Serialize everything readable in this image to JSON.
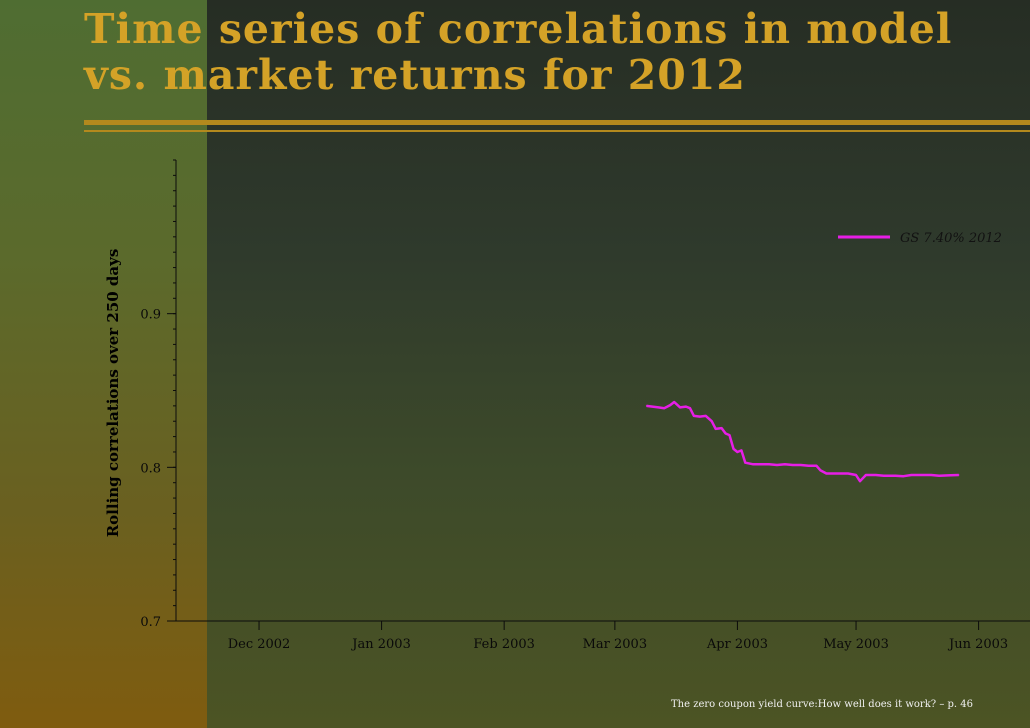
{
  "slide": {
    "title": "Time series of correlations in model vs. market returns for 2012",
    "footer": "The zero coupon yield curve:How well does it work? – p. 46"
  },
  "colors": {
    "title": "#d4a227",
    "series": "#e61ee6"
  },
  "chart_data": {
    "type": "line",
    "title": "",
    "xlabel": "",
    "ylabel": "Rolling correlations over 250 days",
    "ylim": [
      0.7,
      1.0
    ],
    "y_ticks": [
      "0.7",
      "0.8",
      "0.9"
    ],
    "x_range_days": [
      -21,
      195
    ],
    "x_ticks": [
      {
        "label": "Dec 2002",
        "day": 0
      },
      {
        "label": "Jan 2003",
        "day": 31
      },
      {
        "label": "Feb 2003",
        "day": 62
      },
      {
        "label": "Mar 2003",
        "day": 90
      },
      {
        "label": "Apr 2003",
        "day": 121
      },
      {
        "label": "May 2003",
        "day": 151
      },
      {
        "label": "Jun 2003",
        "day": 182
      }
    ],
    "legend": {
      "location": "top-right"
    },
    "series": [
      {
        "name": "GS 7.40% 2012",
        "points": [
          [
            98.0,
            0.84
          ],
          [
            99.5,
            0.8395
          ],
          [
            101.0,
            0.839
          ],
          [
            102.5,
            0.8385
          ],
          [
            104.0,
            0.8405
          ],
          [
            105.0,
            0.8425
          ],
          [
            106.5,
            0.839
          ],
          [
            108.0,
            0.8395
          ],
          [
            109.0,
            0.8385
          ],
          [
            110.0,
            0.8335
          ],
          [
            111.5,
            0.833
          ],
          [
            113.0,
            0.8335
          ],
          [
            114.5,
            0.83
          ],
          [
            115.5,
            0.825
          ],
          [
            117.0,
            0.8255
          ],
          [
            118.0,
            0.822
          ],
          [
            119.0,
            0.821
          ],
          [
            120.0,
            0.812
          ],
          [
            121.0,
            0.81
          ],
          [
            122.0,
            0.811
          ],
          [
            123.0,
            0.803
          ],
          [
            125.0,
            0.802
          ],
          [
            127.0,
            0.802
          ],
          [
            129.0,
            0.802
          ],
          [
            131.0,
            0.8015
          ],
          [
            133.0,
            0.802
          ],
          [
            135.0,
            0.8015
          ],
          [
            137.0,
            0.8015
          ],
          [
            139.0,
            0.801
          ],
          [
            141.0,
            0.801
          ],
          [
            142.0,
            0.798
          ],
          [
            143.5,
            0.796
          ],
          [
            146.0,
            0.796
          ],
          [
            149.0,
            0.796
          ],
          [
            151.0,
            0.795
          ],
          [
            152.0,
            0.791
          ],
          [
            153.5,
            0.795
          ],
          [
            156.0,
            0.795
          ],
          [
            158.0,
            0.7945
          ],
          [
            161.0,
            0.7945
          ],
          [
            163.0,
            0.7942
          ],
          [
            165.0,
            0.795
          ],
          [
            168.0,
            0.795
          ],
          [
            170.0,
            0.795
          ],
          [
            172.0,
            0.7945
          ],
          [
            175.0,
            0.7948
          ],
          [
            177.0,
            0.795
          ]
        ]
      }
    ]
  }
}
